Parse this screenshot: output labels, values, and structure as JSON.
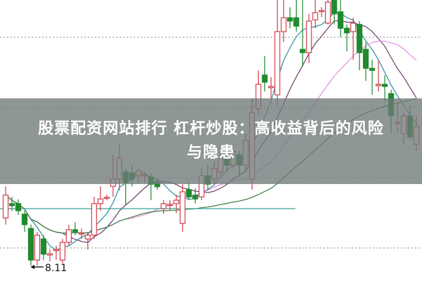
{
  "title_line1": "股票配资网站排行 杠杆炒股：高收益背后的风险",
  "title_line2": "与隐患",
  "chart_data": {
    "type": "candlestick",
    "low_label": "8.11",
    "grid": "dotted horizontal",
    "colors": {
      "up": "#d0404a",
      "down": "#1f8a2e",
      "ma_short": "#2a8f9f",
      "ma_mid": "#6b3d6b",
      "ma_long": "#e58fe0",
      "ma_longer": "#3d7a3d",
      "ma_flat": "#3aa09a"
    },
    "candles_ohlc": [
      [
        9.24,
        9.99,
        9.08,
        9.78
      ],
      [
        9.58,
        9.74,
        9.41,
        9.53
      ],
      [
        9.58,
        9.68,
        9.31,
        9.41
      ],
      [
        9.33,
        9.41,
        8.91,
        9.08
      ],
      [
        8.99,
        9.08,
        8.11,
        8.24
      ],
      [
        8.24,
        8.91,
        8.11,
        8.83
      ],
      [
        8.74,
        8.83,
        8.24,
        8.38
      ],
      [
        8.36,
        8.49,
        8.21,
        8.39
      ],
      [
        8.47,
        8.58,
        8.24,
        8.49
      ],
      [
        8.24,
        8.74,
        8.16,
        8.66
      ],
      [
        8.66,
        9.08,
        8.58,
        8.96
      ],
      [
        8.96,
        9.14,
        8.83,
        8.91
      ],
      [
        8.86,
        8.99,
        8.74,
        8.88
      ],
      [
        8.74,
        8.91,
        8.49,
        8.83
      ],
      [
        8.83,
        9.74,
        8.74,
        9.58
      ],
      [
        9.58,
        9.99,
        9.41,
        9.69
      ],
      [
        9.71,
        9.79,
        9.66,
        9.73
      ],
      [
        9.99,
        10.74,
        9.74,
        10.16
      ],
      [
        10.16,
        10.99,
        9.89,
        10.66
      ],
      [
        10.33,
        10.41,
        9.53,
        10.08
      ],
      [
        10.31,
        10.49,
        9.99,
        10.16
      ],
      [
        10.24,
        10.41,
        10.08,
        10.36
      ],
      [
        10.24,
        10.33,
        10.08,
        10.26
      ],
      [
        10.21,
        10.31,
        9.66,
        10.04
      ],
      [
        10.08,
        10.16,
        9.91,
        9.98
      ],
      [
        9.46,
        9.66,
        9.33,
        9.58
      ],
      [
        9.54,
        9.66,
        9.41,
        9.56
      ],
      [
        9.58,
        9.79,
        9.36,
        9.66
      ],
      [
        9.11,
        10.04,
        8.91,
        9.86
      ],
      [
        9.91,
        10.08,
        9.66,
        9.74
      ],
      [
        9.78,
        9.94,
        9.58,
        9.69
      ],
      [
        9.74,
        10.41,
        9.66,
        10.24
      ],
      [
        10.24,
        10.49,
        9.91,
        10.04
      ],
      [
        10.16,
        10.58,
        10.04,
        10.41
      ],
      [
        10.33,
        10.74,
        10.24,
        10.66
      ],
      [
        10.66,
        10.83,
        10.33,
        10.49
      ],
      [
        10.49,
        10.99,
        10.41,
        10.83
      ],
      [
        10.74,
        10.83,
        10.24,
        10.49
      ],
      [
        10.49,
        11.24,
        10.33,
        11.08
      ],
      [
        10.16,
        12.08,
        9.91,
        11.74
      ],
      [
        11.83,
        12.74,
        11.66,
        12.41
      ],
      [
        12.63,
        13.08,
        12.24,
        12.46
      ],
      [
        12.33,
        12.58,
        12.08,
        12.36
      ],
      [
        12.16,
        14.41,
        11.91,
        13.66
      ],
      [
        13.66,
        14.41,
        13.41,
        13.99
      ],
      [
        13.99,
        14.24,
        13.74,
        13.91
      ],
      [
        13.99,
        14.41,
        13.66,
        13.79
      ],
      [
        13.24,
        14.41,
        12.83,
        13.16
      ],
      [
        13.16,
        14.08,
        12.91,
        13.91
      ],
      [
        13.94,
        14.41,
        13.74,
        14.11
      ],
      [
        14.14,
        14.24,
        14.01,
        14.16
      ],
      [
        13.86,
        14.41,
        13.83,
        14.36
      ],
      [
        14.41,
        14.41,
        13.83,
        14.08
      ],
      [
        14.13,
        14.41,
        13.53,
        13.74
      ],
      [
        13.74,
        13.83,
        13.19,
        13.63
      ],
      [
        13.66,
        13.99,
        12.99,
        13.86
      ],
      [
        13.83,
        13.91,
        12.74,
        13.16
      ],
      [
        13.24,
        13.41,
        12.49,
        12.79
      ],
      [
        12.79,
        12.99,
        12.16,
        12.74
      ],
      [
        12.38,
        12.99,
        12.24,
        12.41
      ],
      [
        12.41,
        12.63,
        11.99,
        12.36
      ],
      [
        12.19,
        12.28,
        11.24,
        11.66
      ],
      [
        11.49,
        11.99,
        11.24,
        11.51
      ],
      [
        11.24,
        11.74,
        10.99,
        11.66
      ],
      [
        11.66,
        11.91,
        11.08,
        11.16
      ],
      [
        10.99,
        11.66,
        10.83,
        11.41
      ]
    ]
  }
}
